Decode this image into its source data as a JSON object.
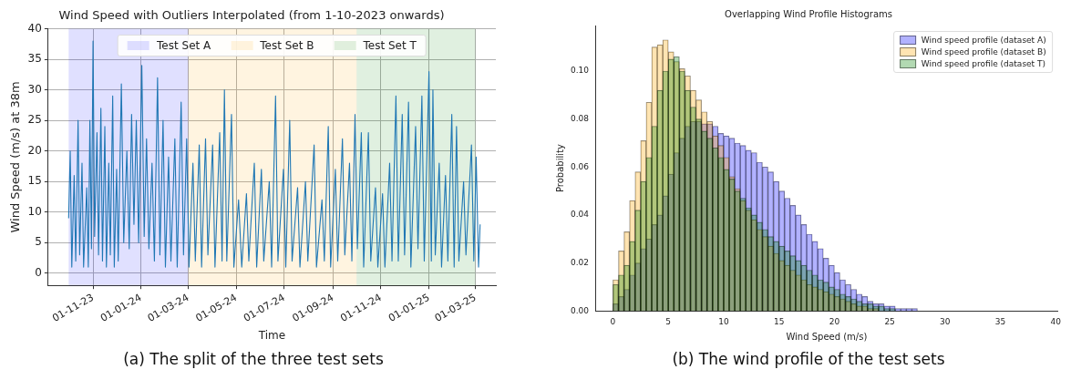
{
  "chart_data": [
    {
      "type": "line",
      "title": "Wind Speed with Outliers Interpolated (from 1-10-2023 onwards)",
      "xlabel": "Time",
      "ylabel": "Wind Speed (m/s) at 38m",
      "x": [
        "2023-10-01",
        "2023-10-03",
        "2023-10-05",
        "2023-10-08",
        "2023-10-10",
        "2023-10-13",
        "2023-10-15",
        "2023-10-18",
        "2023-10-20",
        "2023-10-24",
        "2023-10-26",
        "2023-10-28",
        "2023-10-30",
        "2023-11-01",
        "2023-11-03",
        "2023-11-06",
        "2023-11-08",
        "2023-11-11",
        "2023-11-13",
        "2023-11-16",
        "2023-11-18",
        "2023-11-21",
        "2023-11-23",
        "2023-11-26",
        "2023-11-28",
        "2023-12-01",
        "2023-12-03",
        "2023-12-07",
        "2023-12-10",
        "2023-12-14",
        "2023-12-17",
        "2023-12-20",
        "2023-12-23",
        "2023-12-26",
        "2023-12-29",
        "2024-01-02",
        "2024-01-05",
        "2024-01-08",
        "2024-01-11",
        "2024-01-15",
        "2024-01-18",
        "2024-01-22",
        "2024-01-25",
        "2024-01-29",
        "2024-02-01",
        "2024-02-05",
        "2024-02-08",
        "2024-02-13",
        "2024-02-16",
        "2024-02-21",
        "2024-02-24",
        "2024-02-28",
        "2024-03-02",
        "2024-03-07",
        "2024-03-10",
        "2024-03-15",
        "2024-03-18",
        "2024-03-23",
        "2024-03-26",
        "2024-04-01",
        "2024-04-04",
        "2024-04-10",
        "2024-04-13",
        "2024-04-16",
        "2024-04-19",
        "2024-04-25",
        "2024-04-28",
        "2024-05-04",
        "2024-05-08",
        "2024-05-14",
        "2024-05-17",
        "2024-05-24",
        "2024-05-27",
        "2024-06-02",
        "2024-06-05",
        "2024-06-12",
        "2024-06-15",
        "2024-06-20",
        "2024-06-23",
        "2024-06-30",
        "2024-07-03",
        "2024-07-08",
        "2024-07-11",
        "2024-07-18",
        "2024-07-21",
        "2024-07-28",
        "2024-07-31",
        "2024-08-08",
        "2024-08-11",
        "2024-08-18",
        "2024-08-21",
        "2024-08-26",
        "2024-08-29",
        "2024-09-04",
        "2024-09-07",
        "2024-09-13",
        "2024-09-16",
        "2024-09-22",
        "2024-09-25",
        "2024-09-29",
        "2024-10-02",
        "2024-10-07",
        "2024-10-10",
        "2024-10-16",
        "2024-10-19",
        "2024-10-25",
        "2024-10-28",
        "2024-11-03",
        "2024-11-06",
        "2024-11-12",
        "2024-11-15",
        "2024-11-20",
        "2024-11-23",
        "2024-11-28",
        "2024-12-01",
        "2024-12-06",
        "2024-12-09",
        "2024-12-15",
        "2024-12-18",
        "2024-12-23",
        "2024-12-26",
        "2025-01-01",
        "2025-01-04",
        "2025-01-06",
        "2025-01-09",
        "2025-01-14",
        "2025-01-17",
        "2025-01-22",
        "2025-01-25",
        "2025-01-30",
        "2025-02-02",
        "2025-02-05",
        "2025-02-08",
        "2025-02-14",
        "2025-02-17",
        "2025-02-24",
        "2025-02-27",
        "2025-03-02",
        "2025-03-05",
        "2025-03-07"
      ],
      "series": [
        {
          "color": "#1f77b4",
          "values": [
            9,
            20,
            1,
            16,
            2,
            25,
            3,
            18,
            1,
            14,
            1,
            25,
            4,
            38,
            6,
            23,
            3,
            27,
            2,
            24,
            1,
            18,
            3,
            29,
            1,
            17,
            2,
            31,
            5,
            20,
            4,
            26,
            8,
            25,
            5,
            34,
            6,
            22,
            4,
            18,
            2,
            32,
            3,
            25,
            1,
            19,
            2,
            22,
            1,
            28,
            3,
            22,
            1,
            18,
            2,
            21,
            1,
            22,
            3,
            21,
            1,
            23,
            2,
            30,
            2,
            26,
            1,
            12,
            1,
            13,
            2,
            18,
            1,
            17,
            2,
            15,
            1,
            29,
            2,
            17,
            1,
            25,
            2,
            14,
            1,
            15,
            2,
            21,
            1,
            12,
            2,
            24,
            1,
            17,
            2,
            22,
            3,
            18,
            2,
            26,
            4,
            23,
            1,
            23,
            2,
            14,
            1,
            13,
            1,
            18,
            2,
            29,
            2,
            26,
            3,
            28,
            1,
            24,
            4,
            29,
            2,
            33,
            2,
            30,
            3,
            18,
            1,
            16,
            2,
            26,
            1,
            24,
            2,
            15,
            3,
            21,
            2,
            19,
            1,
            8
          ]
        }
      ],
      "xlim": [
        "2023-09-05",
        "2025-03-27"
      ],
      "ylim": [
        -2,
        40
      ],
      "xticks": [
        {
          "value": "2023-11-01",
          "label": "01-11-23"
        },
        {
          "value": "2024-01-01",
          "label": "01-01-24"
        },
        {
          "value": "2024-03-01",
          "label": "01-03-24"
        },
        {
          "value": "2024-05-01",
          "label": "01-05-24"
        },
        {
          "value": "2024-07-01",
          "label": "01-07-24"
        },
        {
          "value": "2024-09-01",
          "label": "01-09-24"
        },
        {
          "value": "2024-11-01",
          "label": "01-11-24"
        },
        {
          "value": "2025-01-01",
          "label": "01-01-25"
        },
        {
          "value": "2025-03-01",
          "label": "01-03-25"
        }
      ],
      "yticks": [
        0,
        5,
        10,
        15,
        20,
        25,
        30,
        35,
        40
      ],
      "bands": [
        {
          "axis": "x",
          "from": "2023-10-01",
          "to": "2024-03-01",
          "label": "Test Set A",
          "color": "#0000ff"
        },
        {
          "axis": "x",
          "from": "2024-03-01",
          "to": "2024-10-01",
          "label": "Test Set B",
          "color": "#ffa500"
        },
        {
          "axis": "x",
          "from": "2024-10-01",
          "to": "2025-03-01",
          "label": "Test Set T",
          "color": "#008000"
        }
      ],
      "grid": true,
      "legend": "top",
      "annotations": [
        "(a) The split of the three test sets"
      ]
    },
    {
      "type": "histogram",
      "title": "Overlapping Wind Profile Histograms",
      "xlabel": "Wind Speed (m/s)",
      "ylabel": "Probability",
      "bins": [
        0,
        0.5,
        1,
        1.5,
        2,
        2.5,
        3,
        3.5,
        4,
        4.5,
        5,
        5.5,
        6,
        6.5,
        7,
        7.5,
        8,
        8.5,
        9,
        9.5,
        10,
        10.5,
        11,
        11.5,
        12,
        12.5,
        13,
        13.5,
        14,
        14.5,
        15,
        15.5,
        16,
        16.5,
        17,
        17.5,
        18,
        18.5,
        19,
        19.5,
        20,
        20.5,
        21,
        21.5,
        22,
        22.5,
        23,
        23.5,
        24,
        24.5,
        25,
        25.5,
        26,
        26.5,
        27,
        27.5,
        28,
        28.5,
        29,
        29.5,
        30
      ],
      "series": [
        {
          "name": "Wind speed profile (dataset A)",
          "color": "#0000ff",
          "values": [
            0.003,
            0.006,
            0.009,
            0.015,
            0.02,
            0.026,
            0.03,
            0.036,
            0.04,
            0.048,
            0.057,
            0.066,
            0.072,
            0.077,
            0.079,
            0.079,
            0.078,
            0.078,
            0.077,
            0.074,
            0.073,
            0.072,
            0.07,
            0.069,
            0.067,
            0.066,
            0.062,
            0.06,
            0.058,
            0.054,
            0.05,
            0.047,
            0.044,
            0.04,
            0.036,
            0.032,
            0.029,
            0.026,
            0.022,
            0.019,
            0.016,
            0.013,
            0.011,
            0.009,
            0.007,
            0.006,
            0.004,
            0.003,
            0.003,
            0.002,
            0.002,
            0.001,
            0.001,
            0.001,
            0.001,
            0,
            0,
            0,
            0,
            0
          ]
        },
        {
          "name": "Wind speed profile (dataset B)",
          "color": "#ffa500",
          "values": [
            0.013,
            0.025,
            0.033,
            0.046,
            0.058,
            0.071,
            0.087,
            0.11,
            0.111,
            0.113,
            0.108,
            0.104,
            0.101,
            0.098,
            0.092,
            0.088,
            0.083,
            0.079,
            0.073,
            0.069,
            0.064,
            0.056,
            0.051,
            0.046,
            0.042,
            0.038,
            0.034,
            0.031,
            0.027,
            0.024,
            0.021,
            0.019,
            0.017,
            0.015,
            0.013,
            0.011,
            0.01,
            0.009,
            0.008,
            0.007,
            0.006,
            0.005,
            0.004,
            0.003,
            0.002,
            0.002,
            0.001,
            0.001,
            0,
            0,
            0,
            0,
            0,
            0,
            0,
            0,
            0,
            0,
            0,
            0
          ]
        },
        {
          "name": "Wind speed profile (dataset T)",
          "color": "#008000",
          "values": [
            0.011,
            0.015,
            0.019,
            0.029,
            0.042,
            0.054,
            0.064,
            0.077,
            0.092,
            0.1,
            0.105,
            0.106,
            0.1,
            0.092,
            0.085,
            0.08,
            0.075,
            0.072,
            0.068,
            0.064,
            0.059,
            0.055,
            0.05,
            0.047,
            0.043,
            0.04,
            0.037,
            0.034,
            0.031,
            0.029,
            0.027,
            0.025,
            0.023,
            0.021,
            0.019,
            0.017,
            0.015,
            0.013,
            0.012,
            0.01,
            0.009,
            0.007,
            0.006,
            0.005,
            0.004,
            0.003,
            0.003,
            0.002,
            0.002,
            0.001,
            0.001,
            0,
            0,
            0,
            0,
            0,
            0,
            0,
            0,
            0
          ]
        }
      ],
      "xlim": [
        -1.6,
        40.2
      ],
      "ylim": [
        0,
        0.119
      ],
      "xticks": [
        0,
        5,
        10,
        15,
        20,
        25,
        30,
        35,
        40
      ],
      "yticks": [
        {
          "value": 0,
          "label": "0.00"
        },
        0.02,
        0.04,
        0.06,
        0.08,
        {
          "value": 0.1,
          "label": "0.10"
        }
      ],
      "legend": "top right",
      "annotations": [
        "(b) The wind profile of the test sets"
      ]
    }
  ]
}
